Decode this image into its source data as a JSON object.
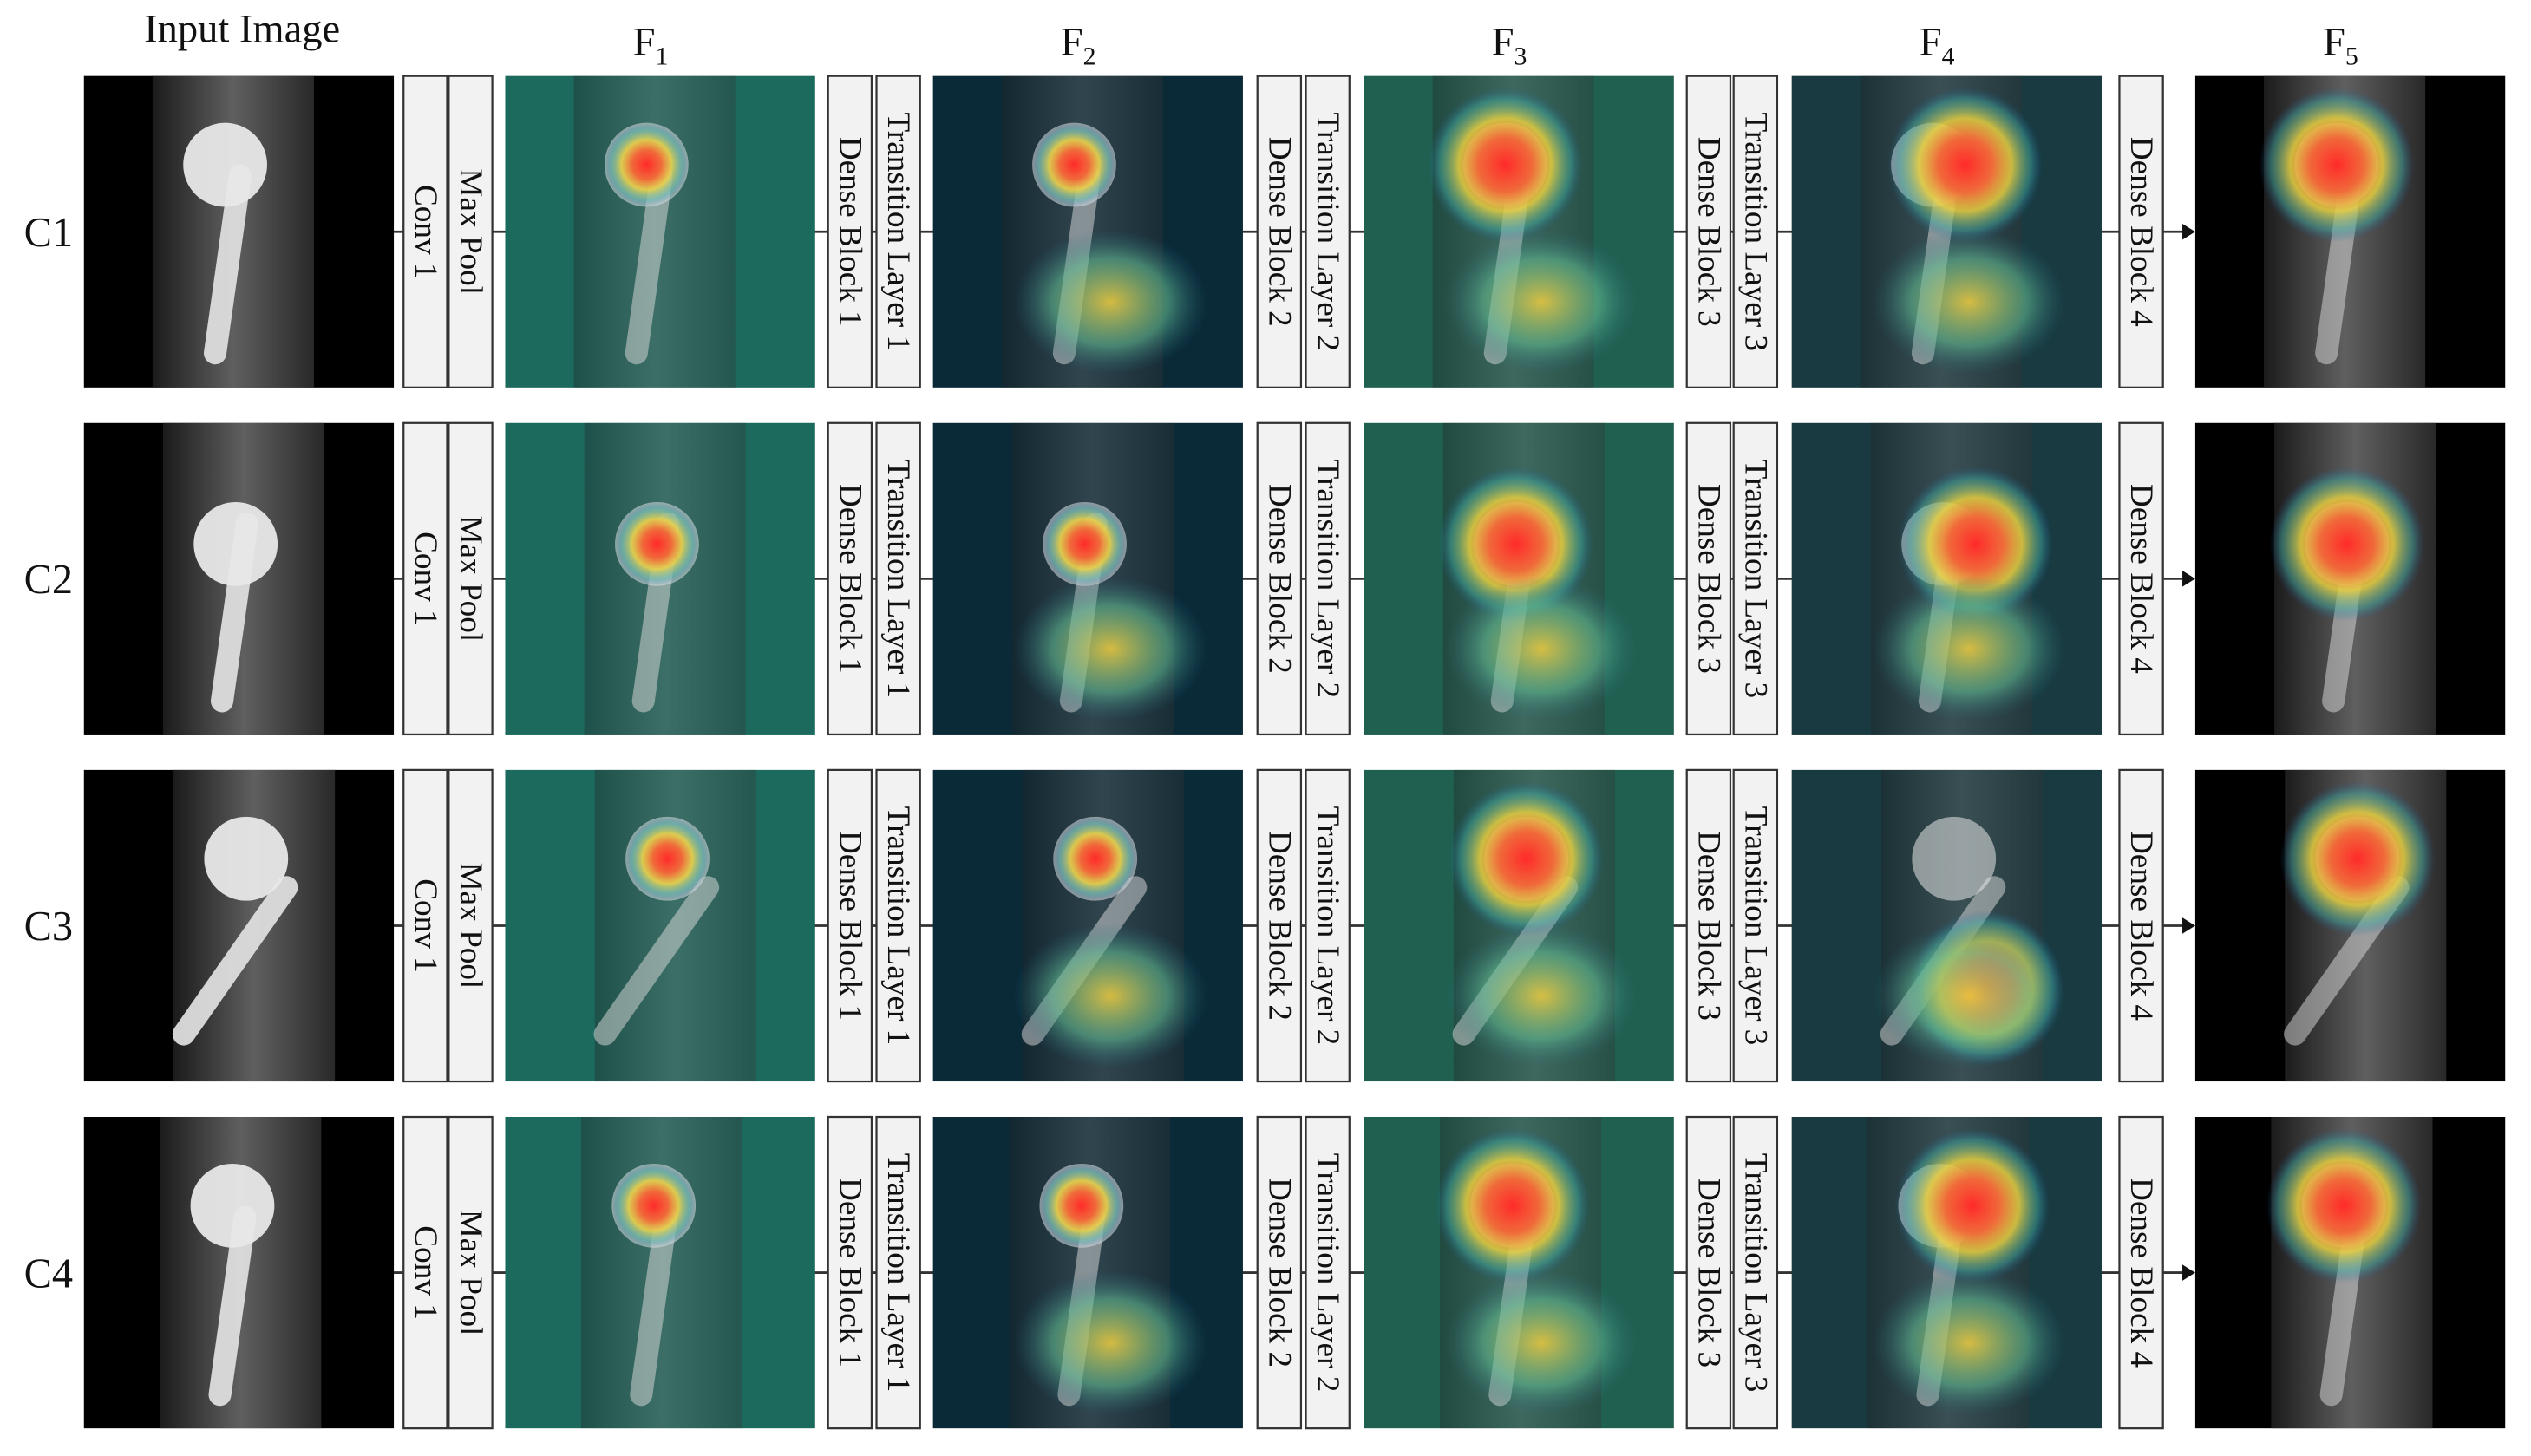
{
  "header": {
    "input": "Input Image",
    "features": [
      {
        "base": "F",
        "sub": "1"
      },
      {
        "base": "F",
        "sub": "2"
      },
      {
        "base": "F",
        "sub": "3"
      },
      {
        "base": "F",
        "sub": "4"
      },
      {
        "base": "F",
        "sub": "5"
      }
    ]
  },
  "rows": [
    "C1",
    "C2",
    "C3",
    "C4"
  ],
  "layers": [
    [
      "Conv 1",
      "Max Pool"
    ],
    [
      "Dense Block 1",
      "Transition Layer 1"
    ],
    [
      "Dense Block 2",
      "Transition Layer 2"
    ],
    [
      "Dense Block 3",
      "Transition Layer 3"
    ],
    [
      "Dense Block 4"
    ]
  ]
}
